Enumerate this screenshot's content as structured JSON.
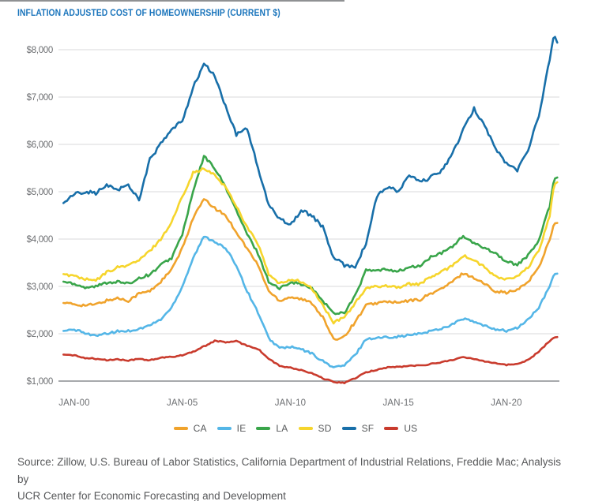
{
  "header": {
    "title": "INFLATION ADJUSTED COST OF HOMEOWNERSHIP (CURRENT $)"
  },
  "source_note": {
    "line1": "Source: Zillow, U.S. Bureau of Labor Statistics, California Department of Industrial Relations, Freddie Mac; Analysis by",
    "line2": "UCR Center for Economic Forecasting and Development"
  },
  "colors": {
    "title_text": "#1b75bc",
    "axis_text": "#6d6f72",
    "grid_line": "#d9dadb",
    "axis_line": "#a7a9ac",
    "legend_text": "#57595b",
    "source_text": "#57585a"
  },
  "chart_data": {
    "type": "line",
    "title": "INFLATION ADJUSTED COST OF HOMEOWNERSHIP (CURRENT $)",
    "xlabel": "",
    "ylabel": "",
    "grid": "horizontal",
    "legend_position": "bottom",
    "ylim": [
      1000,
      8500
    ],
    "y_ticks": [
      1000,
      2000,
      3000,
      4000,
      5000,
      6000,
      7000,
      8000
    ],
    "y_tick_labels": [
      "$1,000",
      "$2,000",
      "$3,000",
      "$4,000",
      "$5,000",
      "$6,000",
      "$7,000",
      "$8,000"
    ],
    "x_tick_years": [
      2000,
      2005,
      2010,
      2015,
      2020
    ],
    "x_tick_labels": [
      "JAN-00",
      "JAN-05",
      "JAN-10",
      "JAN-15",
      "JAN-20"
    ],
    "x": [
      1999.5,
      2000,
      2000.5,
      2001,
      2001.5,
      2002,
      2002.5,
      2003,
      2003.5,
      2004,
      2004.5,
      2005,
      2005.5,
      2006,
      2006.5,
      2007,
      2007.5,
      2008,
      2008.5,
      2009,
      2009.5,
      2010,
      2010.5,
      2011,
      2011.5,
      2012,
      2012.5,
      2013,
      2013.5,
      2014,
      2014.5,
      2015,
      2015.5,
      2016,
      2016.5,
      2017,
      2017.5,
      2018,
      2018.5,
      2019,
      2019.5,
      2020,
      2020.5,
      2021,
      2021.5,
      2022,
      2022.2,
      2022.35
    ],
    "series": [
      {
        "name": "CA",
        "color": "#f0a32c",
        "values": [
          2650,
          2620,
          2600,
          2620,
          2700,
          2750,
          2700,
          2850,
          2900,
          3100,
          3350,
          3800,
          4450,
          4840,
          4650,
          4500,
          4150,
          3800,
          3450,
          2900,
          2700,
          2780,
          2730,
          2650,
          2350,
          1870,
          1950,
          2250,
          2600,
          2650,
          2680,
          2650,
          2700,
          2720,
          2850,
          2950,
          3100,
          3280,
          3180,
          3050,
          2900,
          2870,
          2920,
          3100,
          3400,
          4000,
          4330,
          4340
        ]
      },
      {
        "name": "IE",
        "color": "#54b6e7",
        "values": [
          2060,
          2080,
          2020,
          1950,
          2000,
          2050,
          2060,
          2100,
          2180,
          2300,
          2550,
          3000,
          3600,
          4050,
          3950,
          3800,
          3450,
          2900,
          2450,
          1900,
          1700,
          1720,
          1670,
          1580,
          1420,
          1290,
          1330,
          1550,
          1890,
          1910,
          1930,
          1940,
          1970,
          2000,
          2060,
          2110,
          2200,
          2320,
          2250,
          2160,
          2100,
          2060,
          2120,
          2300,
          2550,
          3000,
          3260,
          3270
        ]
      },
      {
        "name": "LA",
        "color": "#39a54a",
        "values": [
          3100,
          3060,
          2980,
          3000,
          3080,
          3100,
          3050,
          3180,
          3250,
          3450,
          3600,
          4100,
          5000,
          5750,
          5500,
          5100,
          4600,
          4100,
          3700,
          3100,
          2950,
          3100,
          3050,
          2950,
          2700,
          2430,
          2450,
          2800,
          3340,
          3330,
          3360,
          3320,
          3400,
          3430,
          3620,
          3700,
          3850,
          4060,
          3900,
          3820,
          3700,
          3520,
          3460,
          3650,
          3970,
          4700,
          5270,
          5300
        ]
      },
      {
        "name": "SD",
        "color": "#f6d52c",
        "values": [
          3260,
          3220,
          3150,
          3120,
          3300,
          3400,
          3450,
          3550,
          3750,
          4000,
          4350,
          4900,
          5400,
          5480,
          5350,
          5100,
          4700,
          4250,
          3900,
          3250,
          3050,
          3150,
          3100,
          2950,
          2600,
          2230,
          2350,
          2650,
          2950,
          3000,
          3020,
          2980,
          3050,
          3050,
          3200,
          3300,
          3450,
          3650,
          3550,
          3400,
          3200,
          3150,
          3200,
          3400,
          3750,
          4500,
          5150,
          5200
        ]
      },
      {
        "name": "SF",
        "color": "#186fa9",
        "values": [
          4760,
          4950,
          5010,
          4970,
          5130,
          5050,
          5140,
          4840,
          5680,
          6010,
          6300,
          6500,
          7200,
          7700,
          7450,
          6800,
          6200,
          6350,
          5500,
          4700,
          4450,
          4300,
          4600,
          4500,
          4250,
          3600,
          3450,
          3420,
          3900,
          4900,
          5100,
          5000,
          5350,
          5200,
          5300,
          5450,
          5800,
          6300,
          6750,
          6400,
          5900,
          5600,
          5450,
          5900,
          6600,
          7800,
          8330,
          8150
        ]
      },
      {
        "name": "US",
        "color": "#c93b2d",
        "values": [
          1560,
          1540,
          1490,
          1470,
          1440,
          1460,
          1430,
          1470,
          1440,
          1490,
          1510,
          1550,
          1620,
          1730,
          1850,
          1820,
          1840,
          1750,
          1680,
          1470,
          1320,
          1280,
          1230,
          1160,
          1060,
          980,
          965,
          1060,
          1180,
          1240,
          1290,
          1300,
          1320,
          1330,
          1360,
          1400,
          1450,
          1500,
          1470,
          1420,
          1380,
          1340,
          1360,
          1450,
          1620,
          1850,
          1920,
          1930
        ]
      }
    ]
  }
}
